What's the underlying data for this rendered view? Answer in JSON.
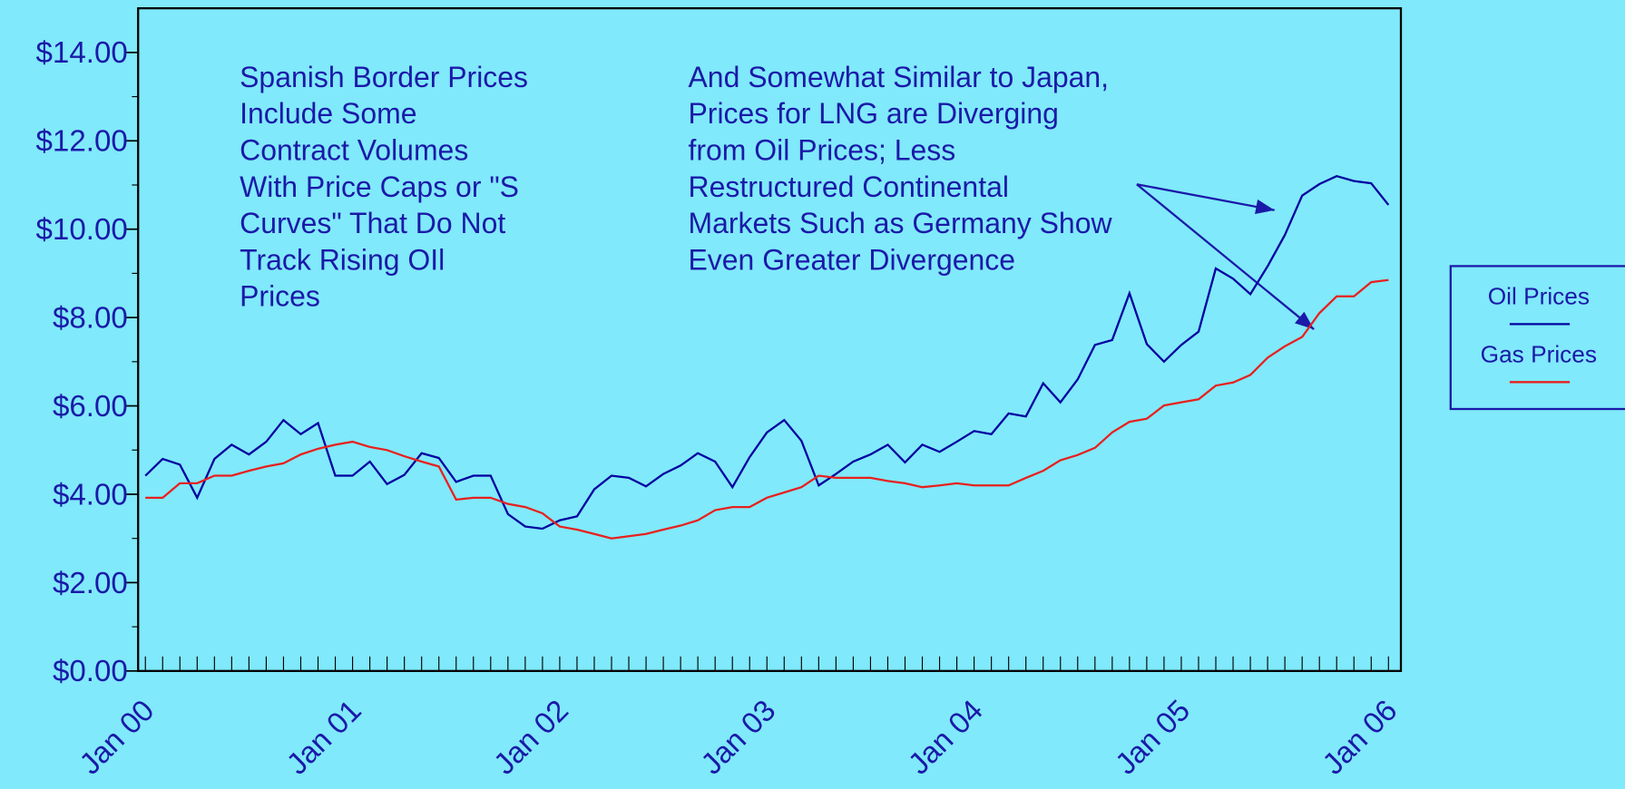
{
  "chart_data": {
    "type": "line",
    "categories": [
      "Jan 00",
      null,
      null,
      null,
      null,
      null,
      null,
      null,
      null,
      null,
      null,
      null,
      "Jan 01",
      null,
      null,
      null,
      null,
      null,
      null,
      null,
      null,
      null,
      null,
      null,
      "Jan 02",
      null,
      null,
      null,
      null,
      null,
      null,
      null,
      null,
      null,
      null,
      null,
      "Jan 03",
      null,
      null,
      null,
      null,
      null,
      null,
      null,
      null,
      null,
      null,
      null,
      "Jan 04",
      null,
      null,
      null,
      null,
      null,
      null,
      null,
      null,
      null,
      null,
      null,
      "Jan 05",
      null,
      null,
      null,
      null,
      null,
      null,
      null,
      null,
      null,
      null,
      null,
      "Jan 06"
    ],
    "series": [
      {
        "name": "Oil Prices",
        "color": "#0000a0",
        "values": [
          4.42,
          4.8,
          4.67,
          3.92,
          4.8,
          5.12,
          4.9,
          5.19,
          5.68,
          5.36,
          5.61,
          4.42,
          4.42,
          4.74,
          4.23,
          4.44,
          4.93,
          4.82,
          4.28,
          4.42,
          4.42,
          3.55,
          3.27,
          3.22,
          3.41,
          3.5,
          4.11,
          4.42,
          4.37,
          4.18,
          4.46,
          4.65,
          4.93,
          4.74,
          4.16,
          4.84,
          5.4,
          5.68,
          5.21,
          4.2,
          4.46,
          4.74,
          4.9,
          5.12,
          4.72,
          5.12,
          4.96,
          5.19,
          5.43,
          5.36,
          5.83,
          5.76,
          6.51,
          6.08,
          6.6,
          7.38,
          7.49,
          8.55,
          7.4,
          7.0,
          7.38,
          7.68,
          9.11,
          8.88,
          8.53,
          9.16,
          9.87,
          10.76,
          11.02,
          11.2,
          11.09,
          11.04,
          10.55
        ]
      },
      {
        "name": "Gas Prices",
        "color": "#e8201e",
        "values": [
          3.92,
          3.92,
          4.25,
          4.25,
          4.42,
          4.42,
          4.53,
          4.63,
          4.7,
          4.9,
          5.03,
          5.12,
          5.19,
          5.07,
          5.0,
          4.86,
          4.74,
          4.63,
          3.88,
          3.92,
          3.92,
          3.78,
          3.71,
          3.57,
          3.27,
          3.2,
          3.1,
          3.0,
          3.05,
          3.1,
          3.2,
          3.29,
          3.41,
          3.64,
          3.71,
          3.71,
          3.92,
          4.04,
          4.16,
          4.42,
          4.37,
          4.37,
          4.37,
          4.3,
          4.25,
          4.16,
          4.2,
          4.25,
          4.2,
          4.2,
          4.2,
          4.37,
          4.53,
          4.77,
          4.89,
          5.05,
          5.4,
          5.64,
          5.71,
          6.01,
          6.08,
          6.15,
          6.46,
          6.53,
          6.7,
          7.09,
          7.35,
          7.56,
          8.1,
          8.48,
          8.48,
          8.8,
          8.85
        ]
      }
    ],
    "ylim": [
      0,
      15
    ],
    "yticks": [
      {
        "value": 0,
        "label": "$0.00"
      },
      {
        "value": 2,
        "label": "$2.00"
      },
      {
        "value": 4,
        "label": "$4.00"
      },
      {
        "value": 6,
        "label": "$6.00"
      },
      {
        "value": 8,
        "label": "$8.00"
      },
      {
        "value": 10,
        "label": "$10.00"
      },
      {
        "value": 12,
        "label": "$12.00"
      },
      {
        "value": 14,
        "label": "$14.00"
      }
    ],
    "yminor_ticks": [
      1,
      3,
      5,
      7,
      9,
      11,
      13
    ],
    "legend": "right",
    "annotations": [
      {
        "lines": [
          "Spanish Border Prices",
          "Include Some",
          "Contract Volumes",
          "With Price Caps or \"S",
          "Curves\" That Do Not",
          "Track Rising OIl",
          "Prices"
        ]
      },
      {
        "lines": [
          "And Somewhat Similar to Japan,",
          "Prices for LNG are Diverging",
          "from Oil Prices; Less",
          "Restructured Continental",
          "Markets Such as Germany Show",
          "Even Greater Divergence"
        ]
      }
    ]
  }
}
